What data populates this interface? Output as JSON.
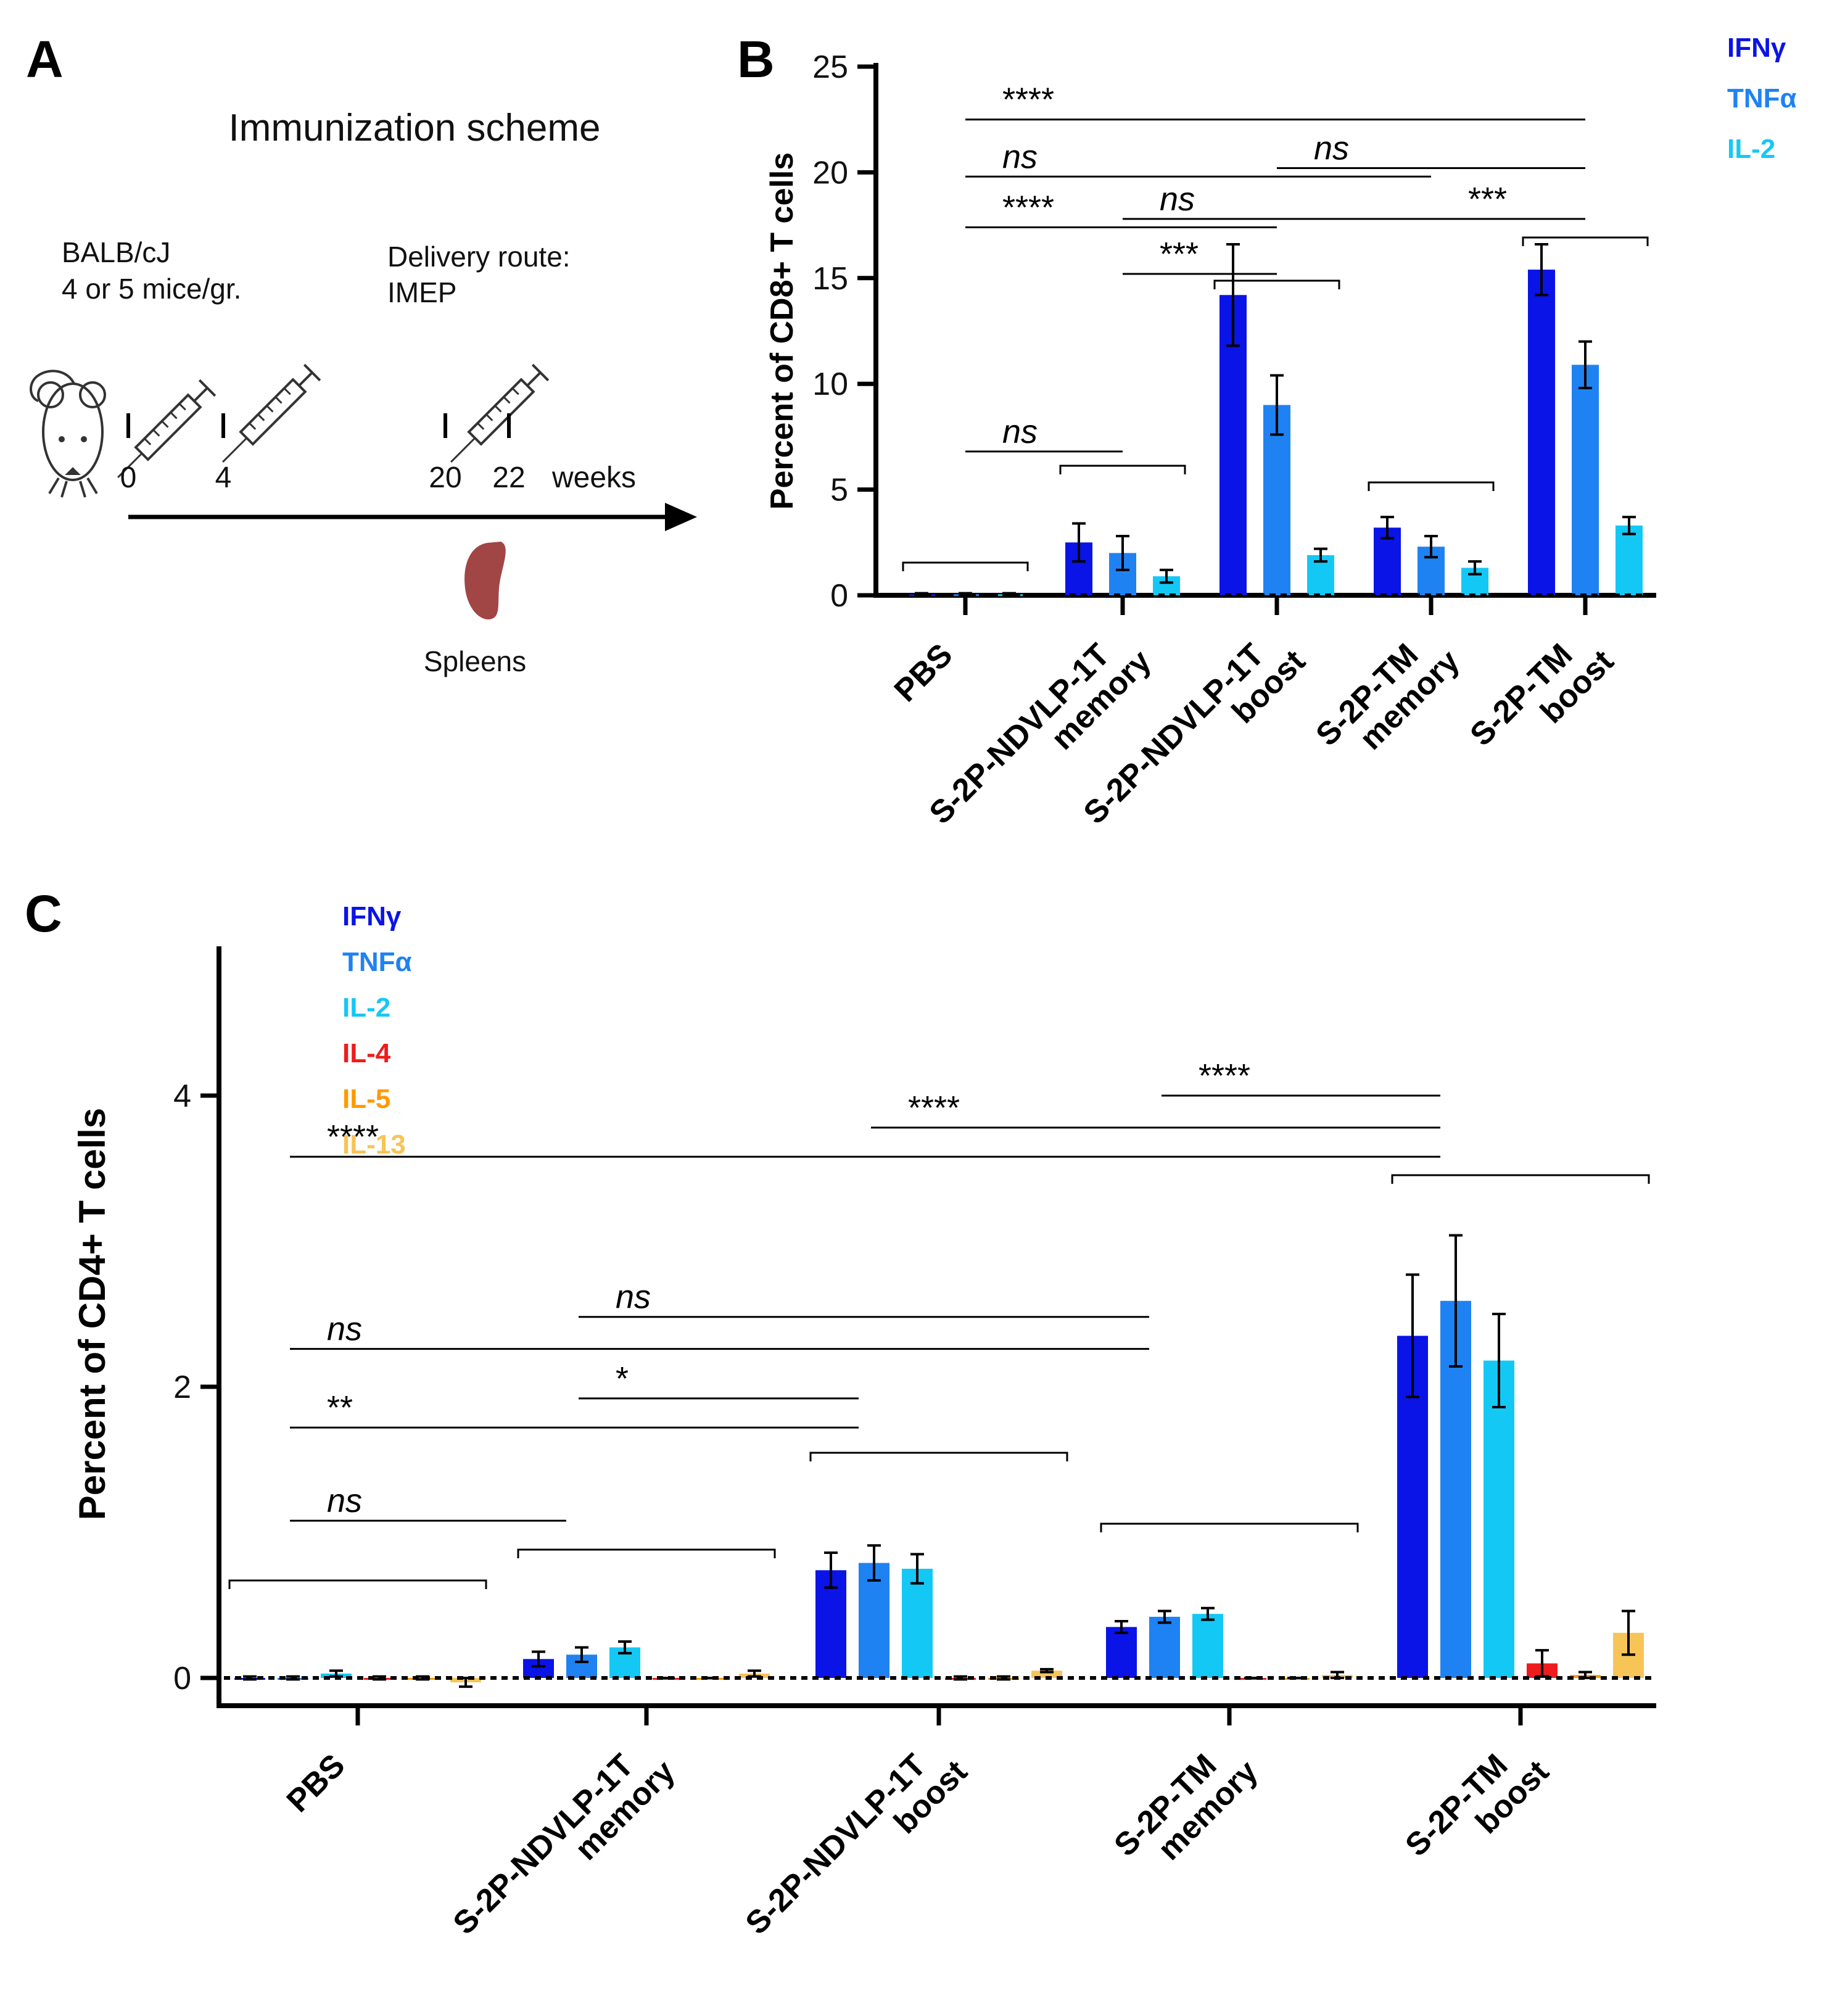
{
  "panel_labels": [
    "A",
    "B",
    "C"
  ],
  "panel_a": {
    "title": "Immunization scheme",
    "mouse_line1": "BALB/cJ",
    "mouse_line2": "4 or 5 mice/gr.",
    "route_line1": "Delivery route:",
    "route_line2": "IMEP",
    "week_marks": [
      "0",
      "4",
      "20",
      "22"
    ],
    "week_unit": "weeks",
    "endpoint": "Spleens",
    "icons": [
      "mouse-icon",
      "syringe-icon",
      "spleen-icon",
      "arrow-icon"
    ]
  },
  "legend_colors": {
    "IFNγ": "#0a14e6",
    "TNFα": "#1f82f2",
    "IL-2": "#14c8f5",
    "IL-4": "#ee1c1c",
    "IL-5": "#ff9900",
    "IL-13": "#f7c458"
  },
  "chart_data": [
    {
      "type": "bar",
      "panel": "B",
      "title": "",
      "xlabel": "",
      "ylabel": "Percent of CD8+ T cells",
      "ylim": [
        0,
        25
      ],
      "yticks": [
        "0",
        "5",
        "10",
        "15",
        "20",
        "25"
      ],
      "categories": [
        [
          "PBS"
        ],
        [
          "S-2P-NDVLP-1T",
          "memory"
        ],
        [
          "S-2P-NDVLP-1T",
          "boost"
        ],
        [
          "S-2P-TM",
          "memory"
        ],
        [
          "S-2P-TM",
          "boost"
        ]
      ],
      "legend": "top-right",
      "series": [
        {
          "name": "IFNγ",
          "values": [
            0.05,
            2.5,
            14.2,
            3.2,
            15.4
          ],
          "errors": [
            0.05,
            0.9,
            2.4,
            0.5,
            1.2
          ]
        },
        {
          "name": "TNFα",
          "values": [
            0.05,
            2.0,
            9.0,
            2.3,
            10.9
          ],
          "errors": [
            0.05,
            0.8,
            1.4,
            0.5,
            1.1
          ]
        },
        {
          "name": "IL-2",
          "values": [
            0.05,
            0.9,
            1.9,
            1.3,
            3.3
          ],
          "errors": [
            0.05,
            0.3,
            0.3,
            0.3,
            0.4
          ]
        }
      ],
      "annotations": [
        {
          "text": "****",
          "from": 0,
          "to": 4,
          "y": 22.5
        },
        {
          "text": "ns",
          "from": 0,
          "to": 3,
          "y": 19.8
        },
        {
          "text": "ns",
          "from": 2,
          "to": 4,
          "y": 20.2
        },
        {
          "text": "****",
          "from": 0,
          "to": 2,
          "y": 17.4
        },
        {
          "text": "ns",
          "from": 1,
          "to": 3,
          "y": 17.8
        },
        {
          "text": "***",
          "from": 1,
          "to": 2,
          "y": 15.2
        },
        {
          "text": "***",
          "from": 3,
          "to": 4,
          "y": 17.8
        },
        {
          "text": "ns",
          "from": 0,
          "to": 1,
          "y": 6.8
        }
      ],
      "dashed_baseline": true
    },
    {
      "type": "bar",
      "panel": "C",
      "title": "",
      "xlabel": "",
      "ylabel": "Percent of CD4+ T cells",
      "ylim": [
        0,
        5
      ],
      "yticks": [
        "0",
        "2",
        "4"
      ],
      "categories": [
        [
          "PBS"
        ],
        [
          "S-2P-NDVLP-1T",
          "memory"
        ],
        [
          "S-2P-NDVLP-1T",
          "boost"
        ],
        [
          "S-2P-TM",
          "memory"
        ],
        [
          "S-2P-TM",
          "boost"
        ]
      ],
      "legend": "top-left",
      "series": [
        {
          "name": "IFNγ",
          "values": [
            0.0,
            0.13,
            0.74,
            0.35,
            2.35
          ],
          "errors": [
            0.01,
            0.05,
            0.12,
            0.04,
            0.42
          ]
        },
        {
          "name": "TNFα",
          "values": [
            0.0,
            0.16,
            0.79,
            0.42,
            2.59
          ],
          "errors": [
            0.01,
            0.05,
            0.12,
            0.04,
            0.45
          ]
        },
        {
          "name": "IL-2",
          "values": [
            0.03,
            0.21,
            0.75,
            0.44,
            2.18
          ],
          "errors": [
            0.02,
            0.04,
            0.1,
            0.04,
            0.32
          ]
        },
        {
          "name": "IL-4",
          "values": [
            0.0,
            0.0,
            0.0,
            0.0,
            0.1
          ],
          "errors": [
            0.01,
            0.0,
            0.01,
            0.0,
            0.09
          ]
        },
        {
          "name": "IL-5",
          "values": [
            0.0,
            0.0,
            0.0,
            0.0,
            0.02
          ],
          "errors": [
            0.01,
            0.0,
            0.01,
            0.0,
            0.02
          ]
        },
        {
          "name": "IL-13",
          "values": [
            -0.03,
            0.03,
            0.05,
            0.02,
            0.31
          ],
          "errors": [
            0.03,
            0.02,
            0.01,
            0.02,
            0.15
          ]
        }
      ],
      "annotations": [
        {
          "text": "****",
          "from": 0,
          "to": 4,
          "y": 3.58
        },
        {
          "text": "****",
          "from": 2,
          "to": 4,
          "y": 3.78
        },
        {
          "text": "****",
          "from": 3,
          "to": 4,
          "y": 4.0
        },
        {
          "text": "ns",
          "from": 1,
          "to": 3,
          "y": 2.48
        },
        {
          "text": "ns",
          "from": 0,
          "to": 3,
          "y": 2.26
        },
        {
          "text": "*",
          "from": 1,
          "to": 2,
          "y": 1.92
        },
        {
          "text": "**",
          "from": 0,
          "to": 2,
          "y": 1.72
        },
        {
          "text": "ns",
          "from": 0,
          "to": 1,
          "y": 1.08
        }
      ],
      "dashed_baseline": true
    }
  ]
}
